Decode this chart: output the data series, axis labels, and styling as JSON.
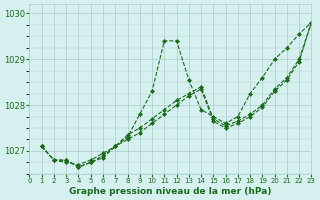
{
  "title": "",
  "xlabel": "Graphe pression niveau de la mer (hPa)",
  "ylabel": "",
  "bg_color": "#d6f0f0",
  "grid_color": "#aacccc",
  "line_color": "#1a6b1a",
  "marker_color": "#1a6b1a",
  "xlim": [
    0,
    23
  ],
  "ylim": [
    1026.5,
    1030.2
  ],
  "yticks": [
    1027,
    1028,
    1029,
    1030
  ],
  "xticks": [
    0,
    1,
    2,
    3,
    4,
    5,
    6,
    7,
    8,
    9,
    10,
    11,
    12,
    13,
    14,
    15,
    16,
    17,
    18,
    19,
    20,
    21,
    22,
    23
  ],
  "series": [
    [
      1027.1,
      1026.8,
      1026.8,
      1026.65,
      1026.75,
      1026.85,
      1027.1,
      1027.3,
      1027.8,
      1028.3,
      1029.4,
      1029.4,
      1028.55,
      1027.9,
      1027.75,
      1027.6,
      1027.75,
      1028.25,
      1028.6,
      1029.0,
      1029.25,
      1029.55,
      1029.8
    ],
    [
      1027.1,
      1026.8,
      1026.8,
      1026.65,
      1026.75,
      1026.9,
      1027.1,
      1027.35,
      1027.5,
      1027.7,
      1027.9,
      1028.1,
      1028.25,
      1028.4,
      1027.7,
      1027.55,
      1027.65,
      1027.8,
      1028.0,
      1028.35,
      1028.6,
      1029.0,
      1029.8
    ],
    [
      1027.1,
      1026.8,
      1026.75,
      1026.7,
      1026.8,
      1026.95,
      1027.1,
      1027.25,
      1027.4,
      1027.6,
      1027.8,
      1028.0,
      1028.2,
      1028.35,
      1027.65,
      1027.5,
      1027.6,
      1027.75,
      1027.95,
      1028.3,
      1028.55,
      1028.95,
      1029.8
    ]
  ]
}
